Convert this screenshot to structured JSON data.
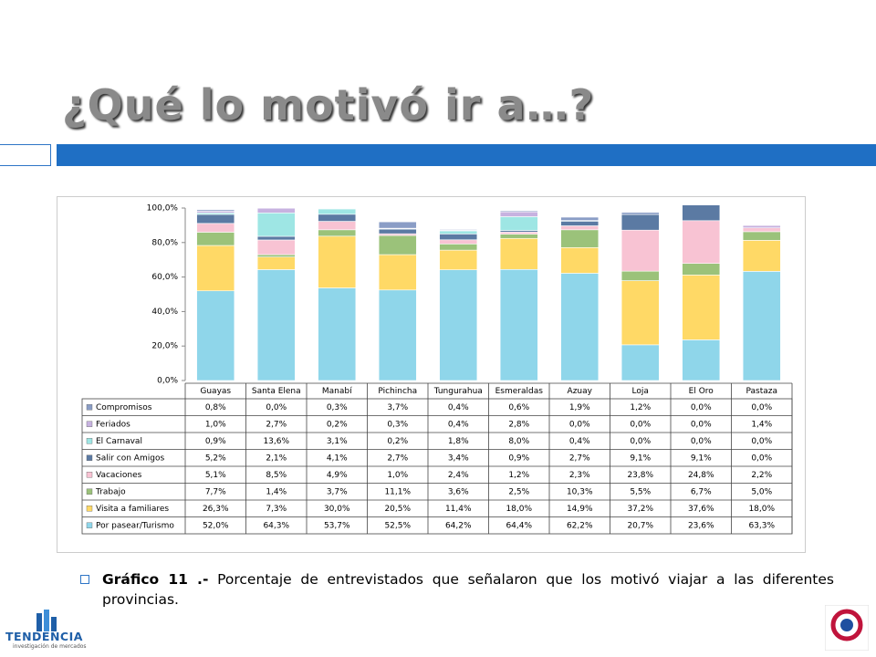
{
  "slide": {
    "title": "¿Qué lo motivó ir a…?",
    "caption_label": "Gráfico 11 .-",
    "caption": "Porcentaje de entrevistados que señalaron que los motivó viajar a las diferentes provincias.",
    "logo_text": "TENDENCIA",
    "logo_subtext": "investigación de mercados"
  },
  "chart_data": {
    "type": "stacked_bar",
    "categories": [
      "Guayas",
      "Santa Elena",
      "Manabí",
      "Pichincha",
      "Tungurahua",
      "Esmeraldas",
      "Azuay",
      "Loja",
      "El Oro",
      "Pastaza"
    ],
    "ylim": [
      0,
      100
    ],
    "yticks": [
      {
        "value": 0,
        "label": "0,0%"
      },
      {
        "value": 20,
        "label": "20,0%"
      },
      {
        "value": 40,
        "label": "40,0%"
      },
      {
        "value": 60,
        "label": "60,0%"
      },
      {
        "value": 80,
        "label": "80,0%"
      },
      {
        "value": 100,
        "label": "100,0%"
      }
    ],
    "series": [
      {
        "name": "Por pasear/Turismo",
        "color": "#8fd6ea",
        "values": [
          52.0,
          64.3,
          53.7,
          52.5,
          64.2,
          64.4,
          62.2,
          20.7,
          23.6,
          63.3
        ],
        "value_labels": [
          "52,0%",
          "64,3%",
          "53,7%",
          "52,5%",
          "64,2%",
          "64,4%",
          "62,2%",
          "20,7%",
          "23,6%",
          "63,3%"
        ]
      },
      {
        "name": "Visita a familiares",
        "color": "#ffd966",
        "values": [
          26.3,
          7.3,
          30.0,
          20.5,
          11.4,
          18.0,
          14.9,
          37.2,
          37.6,
          18.0
        ],
        "value_labels": [
          "26,3%",
          "7,3%",
          "30,0%",
          "20,5%",
          "11,4%",
          "18,0%",
          "14,9%",
          "37,2%",
          "37,6%",
          "18,0%"
        ]
      },
      {
        "name": "Trabajo",
        "color": "#9bc27a",
        "values": [
          7.7,
          1.4,
          3.7,
          11.1,
          3.6,
          2.5,
          10.3,
          5.5,
          6.7,
          5.0
        ],
        "value_labels": [
          "7,7%",
          "1,4%",
          "3,7%",
          "11,1%",
          "3,6%",
          "2,5%",
          "10,3%",
          "5,5%",
          "6,7%",
          "5,0%"
        ]
      },
      {
        "name": "Vacaciones",
        "color": "#f8c3d3",
        "values": [
          5.1,
          8.5,
          4.9,
          1.0,
          2.4,
          1.2,
          2.3,
          23.8,
          24.8,
          2.2
        ],
        "value_labels": [
          "5,1%",
          "8,5%",
          "4,9%",
          "1,0%",
          "2,4%",
          "1,2%",
          "2,3%",
          "23,8%",
          "24,8%",
          "2,2%"
        ]
      },
      {
        "name": "Salir con Amigos",
        "color": "#5b7aa3",
        "values": [
          5.2,
          2.1,
          4.1,
          2.7,
          3.4,
          0.9,
          2.7,
          9.1,
          9.1,
          0.0
        ],
        "value_labels": [
          "5,2%",
          "2,1%",
          "4,1%",
          "2,7%",
          "3,4%",
          "0,9%",
          "2,7%",
          "9,1%",
          "9,1%",
          "0,0%"
        ]
      },
      {
        "name": "El Carnaval",
        "color": "#9ee6e4",
        "values": [
          0.9,
          13.6,
          3.1,
          0.2,
          1.8,
          8.0,
          0.4,
          0.0,
          0.0,
          0.0
        ],
        "value_labels": [
          "0,9%",
          "13,6%",
          "3,1%",
          "0,2%",
          "1,8%",
          "8,0%",
          "0,4%",
          "0,0%",
          "0,0%",
          "0,0%"
        ]
      },
      {
        "name": "Feriados",
        "color": "#c7b2e0",
        "values": [
          1.0,
          2.7,
          0.2,
          0.3,
          0.4,
          2.8,
          0.0,
          0.0,
          0.0,
          1.4
        ],
        "value_labels": [
          "1,0%",
          "2,7%",
          "0,2%",
          "0,3%",
          "0,4%",
          "2,8%",
          "0,0%",
          "0,0%",
          "0,0%",
          "1,4%"
        ]
      },
      {
        "name": "Compromisos",
        "color": "#8a9dc6",
        "values": [
          0.8,
          0.0,
          0.3,
          3.7,
          0.4,
          0.6,
          1.9,
          1.2,
          0.0,
          0.0
        ],
        "value_labels": [
          "0,8%",
          "0,0%",
          "0,3%",
          "3,7%",
          "0,4%",
          "0,6%",
          "1,9%",
          "1,2%",
          "0,0%",
          "0,0%"
        ]
      }
    ]
  }
}
